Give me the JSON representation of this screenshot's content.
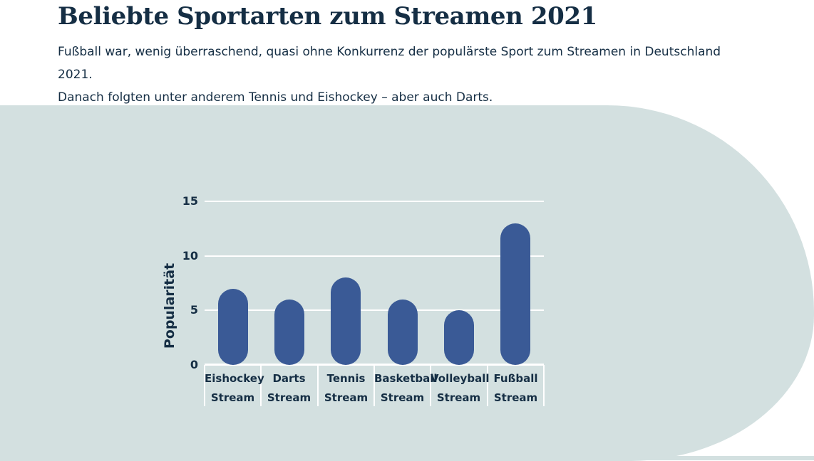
{
  "page": {
    "title": "Beliebte Sportarten zum Streamen 2021",
    "subtitle": {
      "line1": "Fußball war, wenig überraschend, quasi ohne Konkurrenz der populärste Sport zum Streamen in Deutschland 2021.",
      "line2": "Danach folgten unter anderem Tennis und Eishockey – aber auch Darts."
    }
  },
  "colors": {
    "text_navy": "#152E44",
    "bar_blue": "#3A5A96",
    "panel_light_blue": "#D3E0E0",
    "gridline_white": "#FFFFFF",
    "page_background": "#FFFFFF"
  },
  "chart_data": {
    "type": "bar",
    "title": "",
    "xlabel": "",
    "ylabel": "Popularität",
    "ylim": [
      0,
      15
    ],
    "yticks": [
      0,
      5,
      10,
      15
    ],
    "grid": true,
    "legend": "none",
    "bar_style": "rounded-pill",
    "categories": [
      {
        "label_line1": "Eishockey",
        "label_line2": "Stream",
        "slug": "eishockey-stream"
      },
      {
        "label_line1": "Darts",
        "label_line2": "Stream",
        "slug": "darts-stream"
      },
      {
        "label_line1": "Tennis",
        "label_line2": "Stream",
        "slug": "tennis-stream"
      },
      {
        "label_line1": "Basketball",
        "label_line2": "Stream",
        "slug": "basketball-stream"
      },
      {
        "label_line1": "Volleyball",
        "label_line2": "Stream",
        "slug": "volleyball-stream"
      },
      {
        "label_line1": "Fußball",
        "label_line2": "Stream",
        "slug": "fussball-stream"
      }
    ],
    "values": [
      7,
      6,
      8,
      6,
      5,
      13
    ]
  }
}
